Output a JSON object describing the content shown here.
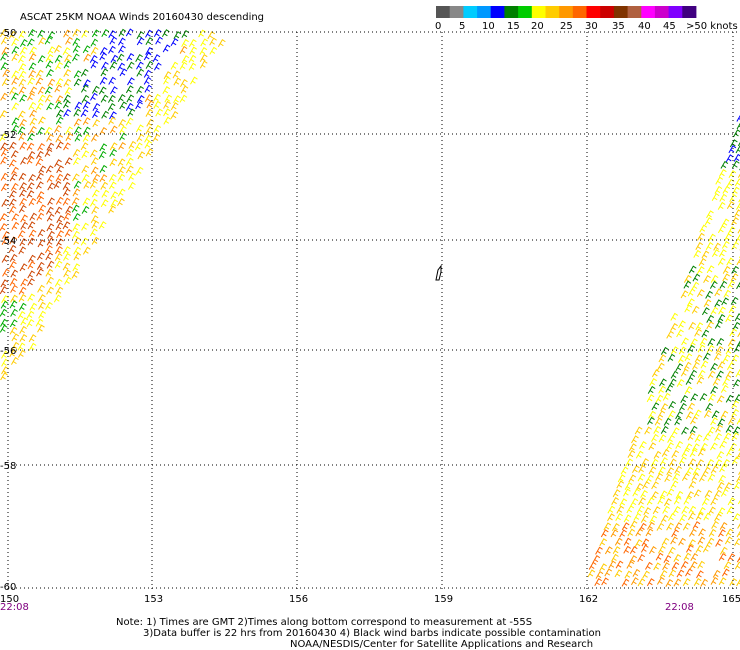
{
  "title": "ASCAT 25KM NOAA Winds 20160430 descending",
  "legend": {
    "labels": [
      "0",
      "5",
      "10",
      "15",
      "20",
      "25",
      "30",
      "35",
      "40",
      "45",
      ">50 knots"
    ],
    "colors": [
      "#555555",
      "#888888",
      "#00ccff",
      "#0099ff",
      "#0000ff",
      "#008000",
      "#00cc00",
      "#ffff00",
      "#ffcc00",
      "#ff9900",
      "#ff6600",
      "#ff0000",
      "#cc0000",
      "#803300",
      "#b06040",
      "#ff00ff",
      "#cc00cc",
      "#8000ff",
      "#400080"
    ]
  },
  "latitude_labels": [
    "-50",
    "-52",
    "-54",
    "-56",
    "-58",
    "-60"
  ],
  "longitude_labels": [
    "150",
    "153",
    "156",
    "159",
    "162",
    "165"
  ],
  "time_labels": {
    "left": "22:08",
    "right": "22:08"
  },
  "notes": {
    "line1": "Note: 1) Times are GMT 2)Times along bottom correspond to measurement at -55S",
    "line2": "3)Data buffer is 22 hrs from 20160430 4) Black wind barbs indicate possible contamination",
    "line3": "NOAA/NESDIS/Center for Satellite Applications and Research"
  }
}
